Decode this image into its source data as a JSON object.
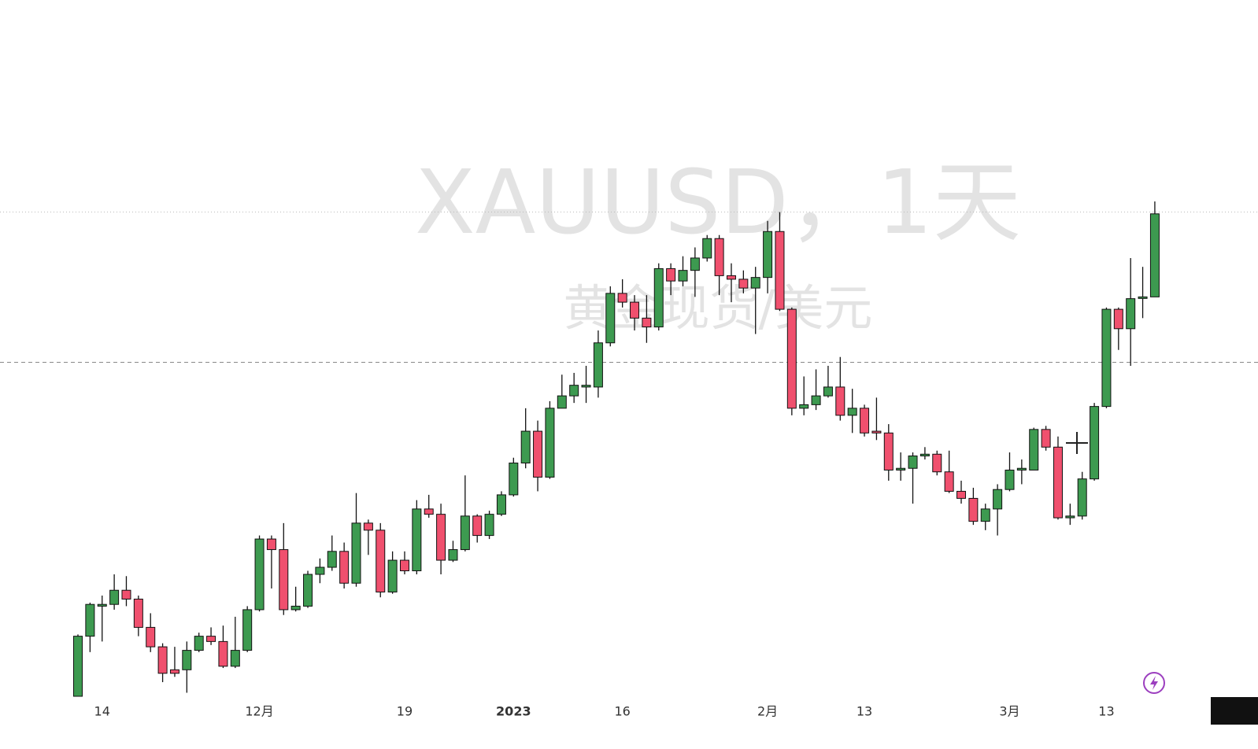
{
  "chart_data": {
    "type": "candlestick",
    "title": "XAUUSD，1天",
    "subtitle": "黄金现货/美元",
    "categories": [
      null,
      null,
      "14",
      null,
      null,
      null,
      null,
      null,
      null,
      null,
      null,
      null,
      null,
      null,
      null,
      "12月",
      null,
      null,
      null,
      null,
      null,
      null,
      null,
      null,
      null,
      null,
      null,
      "19",
      null,
      null,
      null,
      null,
      null,
      null,
      null,
      null,
      "2023",
      null,
      null,
      null,
      null,
      null,
      null,
      null,
      null,
      "16",
      null,
      null,
      null,
      null,
      null,
      null,
      null,
      null,
      null,
      null,
      null,
      "2月",
      null,
      null,
      null,
      null,
      null,
      null,
      null,
      "13",
      null,
      null,
      null,
      null,
      null,
      null,
      null,
      null,
      null,
      null,
      null,
      "3月",
      null,
      null,
      null,
      null,
      null,
      null,
      null,
      "13",
      null,
      null,
      null,
      null
    ],
    "ohlc": [
      [
        1730,
        1765,
        1730,
        1764
      ],
      [
        1764,
        1783,
        1755,
        1782
      ],
      [
        1781,
        1787,
        1761,
        1782
      ],
      [
        1782,
        1799,
        1779,
        1790
      ],
      [
        1790,
        1798,
        1781,
        1785
      ],
      [
        1785,
        1787,
        1764,
        1769
      ],
      [
        1769,
        1777,
        1755,
        1758
      ],
      [
        1758,
        1760,
        1738,
        1743
      ],
      [
        1745,
        1758,
        1741,
        1743
      ],
      [
        1745,
        1761,
        1732,
        1756
      ],
      [
        1756,
        1766,
        1755,
        1764
      ],
      [
        1764,
        1769,
        1759,
        1761
      ],
      [
        1761,
        1770,
        1746,
        1747
      ],
      [
        1747,
        1775,
        1746,
        1756
      ],
      [
        1756,
        1781,
        1755,
        1779
      ],
      [
        1779,
        1821,
        1778,
        1819
      ],
      [
        1819,
        1821,
        1791,
        1813
      ],
      [
        1813,
        1828,
        1776,
        1779
      ],
      [
        1779,
        1792,
        1778,
        1781
      ],
      [
        1781,
        1801,
        1780,
        1799
      ],
      [
        1799,
        1808,
        1794,
        1803
      ],
      [
        1803,
        1821,
        1801,
        1812
      ],
      [
        1812,
        1817,
        1791,
        1794
      ],
      [
        1794,
        1845,
        1792,
        1828
      ],
      [
        1828,
        1830,
        1810,
        1824
      ],
      [
        1824,
        1828,
        1786,
        1789
      ],
      [
        1789,
        1812,
        1788,
        1807
      ],
      [
        1807,
        1812,
        1799,
        1801
      ],
      [
        1801,
        1841,
        1799,
        1836
      ],
      [
        1836,
        1844,
        1831,
        1833
      ],
      [
        1833,
        1839,
        1799,
        1807
      ],
      [
        1807,
        1818,
        1806,
        1813
      ],
      [
        1813,
        1855,
        1812,
        1832
      ],
      [
        1832,
        1833,
        1817,
        1821
      ],
      [
        1821,
        1835,
        1819,
        1833
      ],
      [
        1833,
        1846,
        1832,
        1844
      ],
      [
        1844,
        1865,
        1843,
        1862
      ],
      [
        1862,
        1893,
        1859,
        1880
      ],
      [
        1880,
        1886,
        1846,
        1854
      ],
      [
        1854,
        1897,
        1853,
        1893
      ],
      [
        1893,
        1912,
        1893,
        1900
      ],
      [
        1900,
        1913,
        1896,
        1906
      ],
      [
        1905,
        1917,
        1896,
        1906
      ],
      [
        1905,
        1937,
        1899,
        1930
      ],
      [
        1930,
        1962,
        1928,
        1958
      ],
      [
        1958,
        1966,
        1950,
        1953
      ],
      [
        1953,
        1957,
        1937,
        1944
      ],
      [
        1944,
        1957,
        1930,
        1939
      ],
      [
        1939,
        1975,
        1937,
        1972
      ],
      [
        1972,
        1975,
        1957,
        1965
      ],
      [
        1965,
        1979,
        1962,
        1971
      ],
      [
        1971,
        1984,
        1956,
        1978
      ],
      [
        1978,
        1991,
        1976,
        1989
      ],
      [
        1989,
        1991,
        1957,
        1968
      ],
      [
        1968,
        1975,
        1953,
        1966
      ],
      [
        1966,
        1971,
        1958,
        1961
      ],
      [
        1961,
        1973,
        1935,
        1967
      ],
      [
        1967,
        1999,
        1958,
        1993
      ],
      [
        1993,
        2004,
        1948,
        1949
      ],
      [
        1949,
        1950,
        1889,
        1893
      ],
      [
        1893,
        1911,
        1889,
        1895
      ],
      [
        1895,
        1915,
        1892,
        1900
      ],
      [
        1900,
        1917,
        1899,
        1905
      ],
      [
        1905,
        1922,
        1886,
        1889
      ],
      [
        1889,
        1904,
        1879,
        1893
      ],
      [
        1893,
        1895,
        1877,
        1879
      ],
      [
        1880,
        1899,
        1875,
        1879
      ],
      [
        1879,
        1884,
        1852,
        1858
      ],
      [
        1858,
        1868,
        1852,
        1859
      ],
      [
        1859,
        1868,
        1839,
        1866
      ],
      [
        1866,
        1871,
        1864,
        1867
      ],
      [
        1867,
        1869,
        1855,
        1857
      ],
      [
        1857,
        1869,
        1845,
        1846
      ],
      [
        1846,
        1852,
        1839,
        1842
      ],
      [
        1842,
        1848,
        1827,
        1829
      ],
      [
        1829,
        1839,
        1824,
        1836
      ],
      [
        1836,
        1850,
        1821,
        1847
      ],
      [
        1847,
        1868,
        1846,
        1858
      ],
      [
        1858,
        1864,
        1850,
        1859
      ],
      [
        1858,
        1882,
        1858,
        1881
      ],
      [
        1881,
        1883,
        1869,
        1871
      ],
      [
        1871,
        1877,
        1830,
        1831
      ],
      [
        1831,
        1839,
        1827,
        1832
      ],
      [
        1832,
        1857,
        1830,
        1853
      ],
      [
        1853,
        1896,
        1852,
        1894
      ],
      [
        1894,
        1950,
        1893,
        1949
      ],
      [
        1949,
        1950,
        1926,
        1938
      ],
      [
        1938,
        1978,
        1917,
        1955
      ],
      [
        1956,
        1973,
        1944,
        1956
      ],
      [
        1956,
        2010,
        1956,
        2003
      ]
    ],
    "up_color": "#3d9a50",
    "down_color": "#f0506e",
    "price_lines": [
      2004,
      1919
    ],
    "ylim": [
      1730,
      2124
    ]
  }
}
